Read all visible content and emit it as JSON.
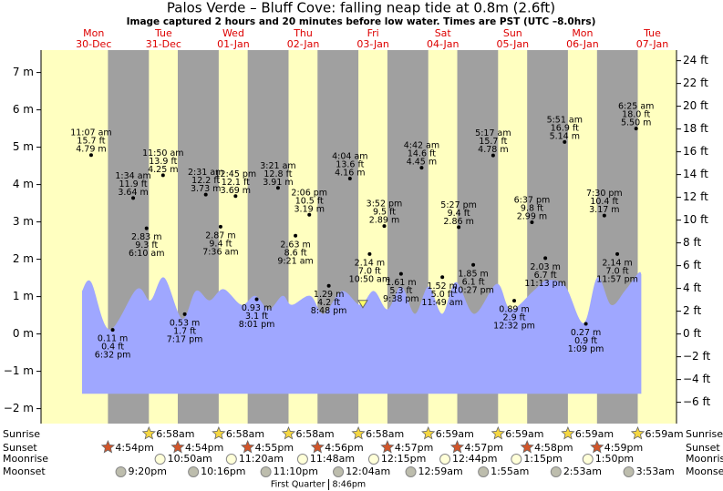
{
  "chart_data": {
    "type": "area",
    "title": "Palos Verde – Bluff Cove: falling  neap tide at 0.8m (2.6ft)",
    "subtitle": "Image captured 2 hours and 20 minutes before low water. Times are PST (UTC –8.0hrs)",
    "xlim": [
      -6.1,
      212.3
    ],
    "ylim": [
      -2.4,
      7.6
    ],
    "y2lim": [
      -7.87,
      24.93
    ],
    "yticks": [
      {
        "value": -2,
        "label": "−2 m"
      },
      {
        "value": -1,
        "label": "−1 m"
      },
      {
        "value": 0,
        "label": "0 m"
      },
      {
        "value": 1,
        "label": "1 m"
      },
      {
        "value": 2,
        "label": "2 m"
      },
      {
        "value": 3,
        "label": "3 m"
      },
      {
        "value": 4,
        "label": "4 m"
      },
      {
        "value": 5,
        "label": "5 m"
      },
      {
        "value": 6,
        "label": "6 m"
      },
      {
        "value": 7,
        "label": "7 m"
      }
    ],
    "y2ticks": [
      {
        "value": -6,
        "label": "−6 ft"
      },
      {
        "value": -4,
        "label": "−4 ft"
      },
      {
        "value": -2,
        "label": "−2 ft"
      },
      {
        "value": 0,
        "label": "0 ft"
      },
      {
        "value": 2,
        "label": "2 ft"
      },
      {
        "value": 4,
        "label": "4 ft"
      },
      {
        "value": 6,
        "label": "6 ft"
      },
      {
        "value": 8,
        "label": "8 ft"
      },
      {
        "value": 10,
        "label": "10 ft"
      },
      {
        "value": 12,
        "label": "12 ft"
      },
      {
        "value": 14,
        "label": "14 ft"
      },
      {
        "value": 16,
        "label": "16 ft"
      },
      {
        "value": 18,
        "label": "18 ft"
      },
      {
        "value": 20,
        "label": "20 ft"
      },
      {
        "value": 22,
        "label": "22 ft"
      },
      {
        "value": 24,
        "label": "24 ft"
      }
    ],
    "days": [
      {
        "name": "Mon",
        "date": "30-Dec",
        "x": 12
      },
      {
        "name": "Tue",
        "date": "31-Dec",
        "x": 36
      },
      {
        "name": "Wed",
        "date": "01-Jan",
        "x": 60
      },
      {
        "name": "Thu",
        "date": "02-Jan",
        "x": 84
      },
      {
        "name": "Fri",
        "date": "03-Jan",
        "x": 108
      },
      {
        "name": "Sat",
        "date": "04-Jan",
        "x": 132
      },
      {
        "name": "Sun",
        "date": "05-Jan",
        "x": 156
      },
      {
        "name": "Mon",
        "date": "06-Jan",
        "x": 180
      },
      {
        "name": "Tue",
        "date": "07-Jan",
        "x": 204
      }
    ],
    "series": [
      {
        "color": "#9fa7ff",
        "base": -1.6,
        "x": [
          8.0,
          11.1,
          17.4,
          26.8,
          31.5,
          36.2,
          42.4,
          47.1,
          51.8,
          56.6,
          62.8,
          67.5,
          72.2,
          76.9,
          80.1,
          86.4,
          91.0,
          97.3,
          103.6,
          108.3,
          113.0,
          117.7,
          122.4,
          127.1,
          131.8,
          136.5,
          142.8,
          150.6,
          155.3,
          163.1,
          167.9,
          174.1,
          180.4,
          185.1,
          189.8,
          194.5,
          199.2,
          200.2
        ],
        "values": [
          1.15,
          1.39,
          0.12,
          1.2,
          0.9,
          1.51,
          0.41,
          1.15,
          0.9,
          1.2,
          0.78,
          1.02,
          0.66,
          1.02,
          0.78,
          1.02,
          0.54,
          1.15,
          0.78,
          1.15,
          0.66,
          1.27,
          0.54,
          1.27,
          0.54,
          1.39,
          0.54,
          1.34,
          0.66,
          1.15,
          1.44,
          1.27,
          0.29,
          1.51,
          0.78,
          1.15,
          1.63,
          1.6
        ]
      }
    ],
    "extremes": {
      "x": [
        11.12,
        18.53,
        25.57,
        30.17,
        35.83,
        43.28,
        50.52,
        55.6,
        60.75,
        68.02,
        75.35,
        81.35,
        86.1,
        92.8,
        100.07,
        106.83,
        111.87,
        117.63,
        124.7,
        131.82,
        137.45,
        142.45,
        149.28,
        156.53,
        162.62,
        167.22,
        173.85,
        181.15,
        187.5,
        191.95,
        198.42
      ],
      "values": [
        4.79,
        0.11,
        3.64,
        2.83,
        4.25,
        0.53,
        3.73,
        2.87,
        3.69,
        0.93,
        3.91,
        2.63,
        3.19,
        1.29,
        4.16,
        2.14,
        2.89,
        1.61,
        4.45,
        1.52,
        2.86,
        1.85,
        4.78,
        0.89,
        2.99,
        2.03,
        5.14,
        0.27,
        3.17,
        2.14,
        5.5
      ],
      "value_labels": [
        "4.79 m",
        "0.11 m",
        "3.64 m",
        "2.83 m",
        "4.25 m",
        "0.53 m",
        "3.73 m",
        "2.87 m",
        "3.69 m",
        "0.93 m",
        "3.91 m",
        "2.63 m",
        "3.19 m",
        "1.29 m",
        "4.16 m",
        "2.14 m",
        "2.89 m",
        "1.61 m",
        "4.45 m",
        "1.52 m",
        "2.86 m",
        "1.85 m",
        "4.78 m",
        "0.89 m",
        "2.99 m",
        "2.03 m",
        "5.14 m",
        "0.27 m",
        "3.17 m",
        "2.14 m",
        "5.50 m"
      ],
      "ft_labels": [
        "15.7 ft",
        "0.4 ft",
        "11.9 ft",
        "9.3 ft",
        "13.9 ft",
        "1.7 ft",
        "12.2 ft",
        "9.4 ft",
        "12.1 ft",
        "3.1 ft",
        "12.8 ft",
        "8.6 ft",
        "10.5 ft",
        "4.2 ft",
        "13.6 ft",
        "7.0 ft",
        "9.5 ft",
        "5.3 ft",
        "14.6 ft",
        "5.0 ft",
        "9.4 ft",
        "6.1 ft",
        "15.7 ft",
        "2.9 ft",
        "9.8 ft",
        "6.7 ft",
        "16.9 ft",
        "0.9 ft",
        "10.4 ft",
        "7.0 ft",
        "18.0 ft"
      ],
      "time_labels": [
        "11:07 am",
        "6:32 pm",
        "1:34 am",
        "6:10 am",
        "11:50 am",
        "7:17 pm",
        "2:31 am",
        "7:36 am",
        "12:45 pm",
        "8:01 pm",
        "3:21 am",
        "9:21 am",
        "2:06 pm",
        "8:48 pm",
        "4:04 am",
        "10:50 am",
        "3:52 pm",
        "9:38 pm",
        "4:42 am",
        "11:49 am",
        "5:27 pm",
        "10:27 pm",
        "5:17 am",
        "12:32 pm",
        "6:37 pm",
        "11:13 pm",
        "5:51 am",
        "1:09 pm",
        "7:30 pm",
        "11:57 pm",
        "6:25 am"
      ]
    },
    "current": {
      "x": 104.5,
      "value": 0.8,
      "color": "#ffff66"
    },
    "sun": {
      "day_color": "#ffffc0",
      "night_color": "#a0a0a0",
      "sunrise": {
        "label": "Sunrise",
        "color": "#f5d742",
        "x": [
          30.97,
          54.97,
          78.97,
          102.97,
          126.98,
          150.98,
          174.98,
          198.98
        ],
        "labels": [
          "6:58am",
          "6:58am",
          "6:58am",
          "6:58am",
          "6:59am",
          "6:59am",
          "6:59am",
          "6:59am"
        ]
      },
      "sunset": {
        "label": "Sunset",
        "color": "#d2552a",
        "x": [
          16.9,
          40.9,
          64.92,
          88.93,
          112.95,
          136.95,
          160.97,
          184.98
        ],
        "labels": [
          "4:54pm",
          "4:54pm",
          "4:55pm",
          "4:56pm",
          "4:57pm",
          "4:57pm",
          "4:58pm",
          "4:59pm"
        ]
      }
    },
    "moon": {
      "moonrise": {
        "label": "Moonrise",
        "color": "#ffffd8",
        "x": [
          34.83,
          59.33,
          83.8,
          108.25,
          132.73,
          157.25,
          181.83
        ],
        "labels": [
          "10:50am",
          "11:20am",
          "11:48am",
          "12:15pm",
          "12:44pm",
          "1:15pm",
          "1:50pm"
        ]
      },
      "moonset": {
        "label": "Moonset",
        "color": "#bdbdad",
        "x": [
          21.33,
          46.27,
          71.17,
          96.07,
          120.98,
          145.92,
          170.88,
          195.88
        ],
        "labels": [
          "9:20pm",
          "10:16pm",
          "11:10pm",
          "12:04am",
          "12:59am",
          "1:55am",
          "2:53am",
          "3:53am"
        ]
      },
      "phase": {
        "label": "First Quarter",
        "time": "8:46pm",
        "x": 92.77
      }
    }
  }
}
